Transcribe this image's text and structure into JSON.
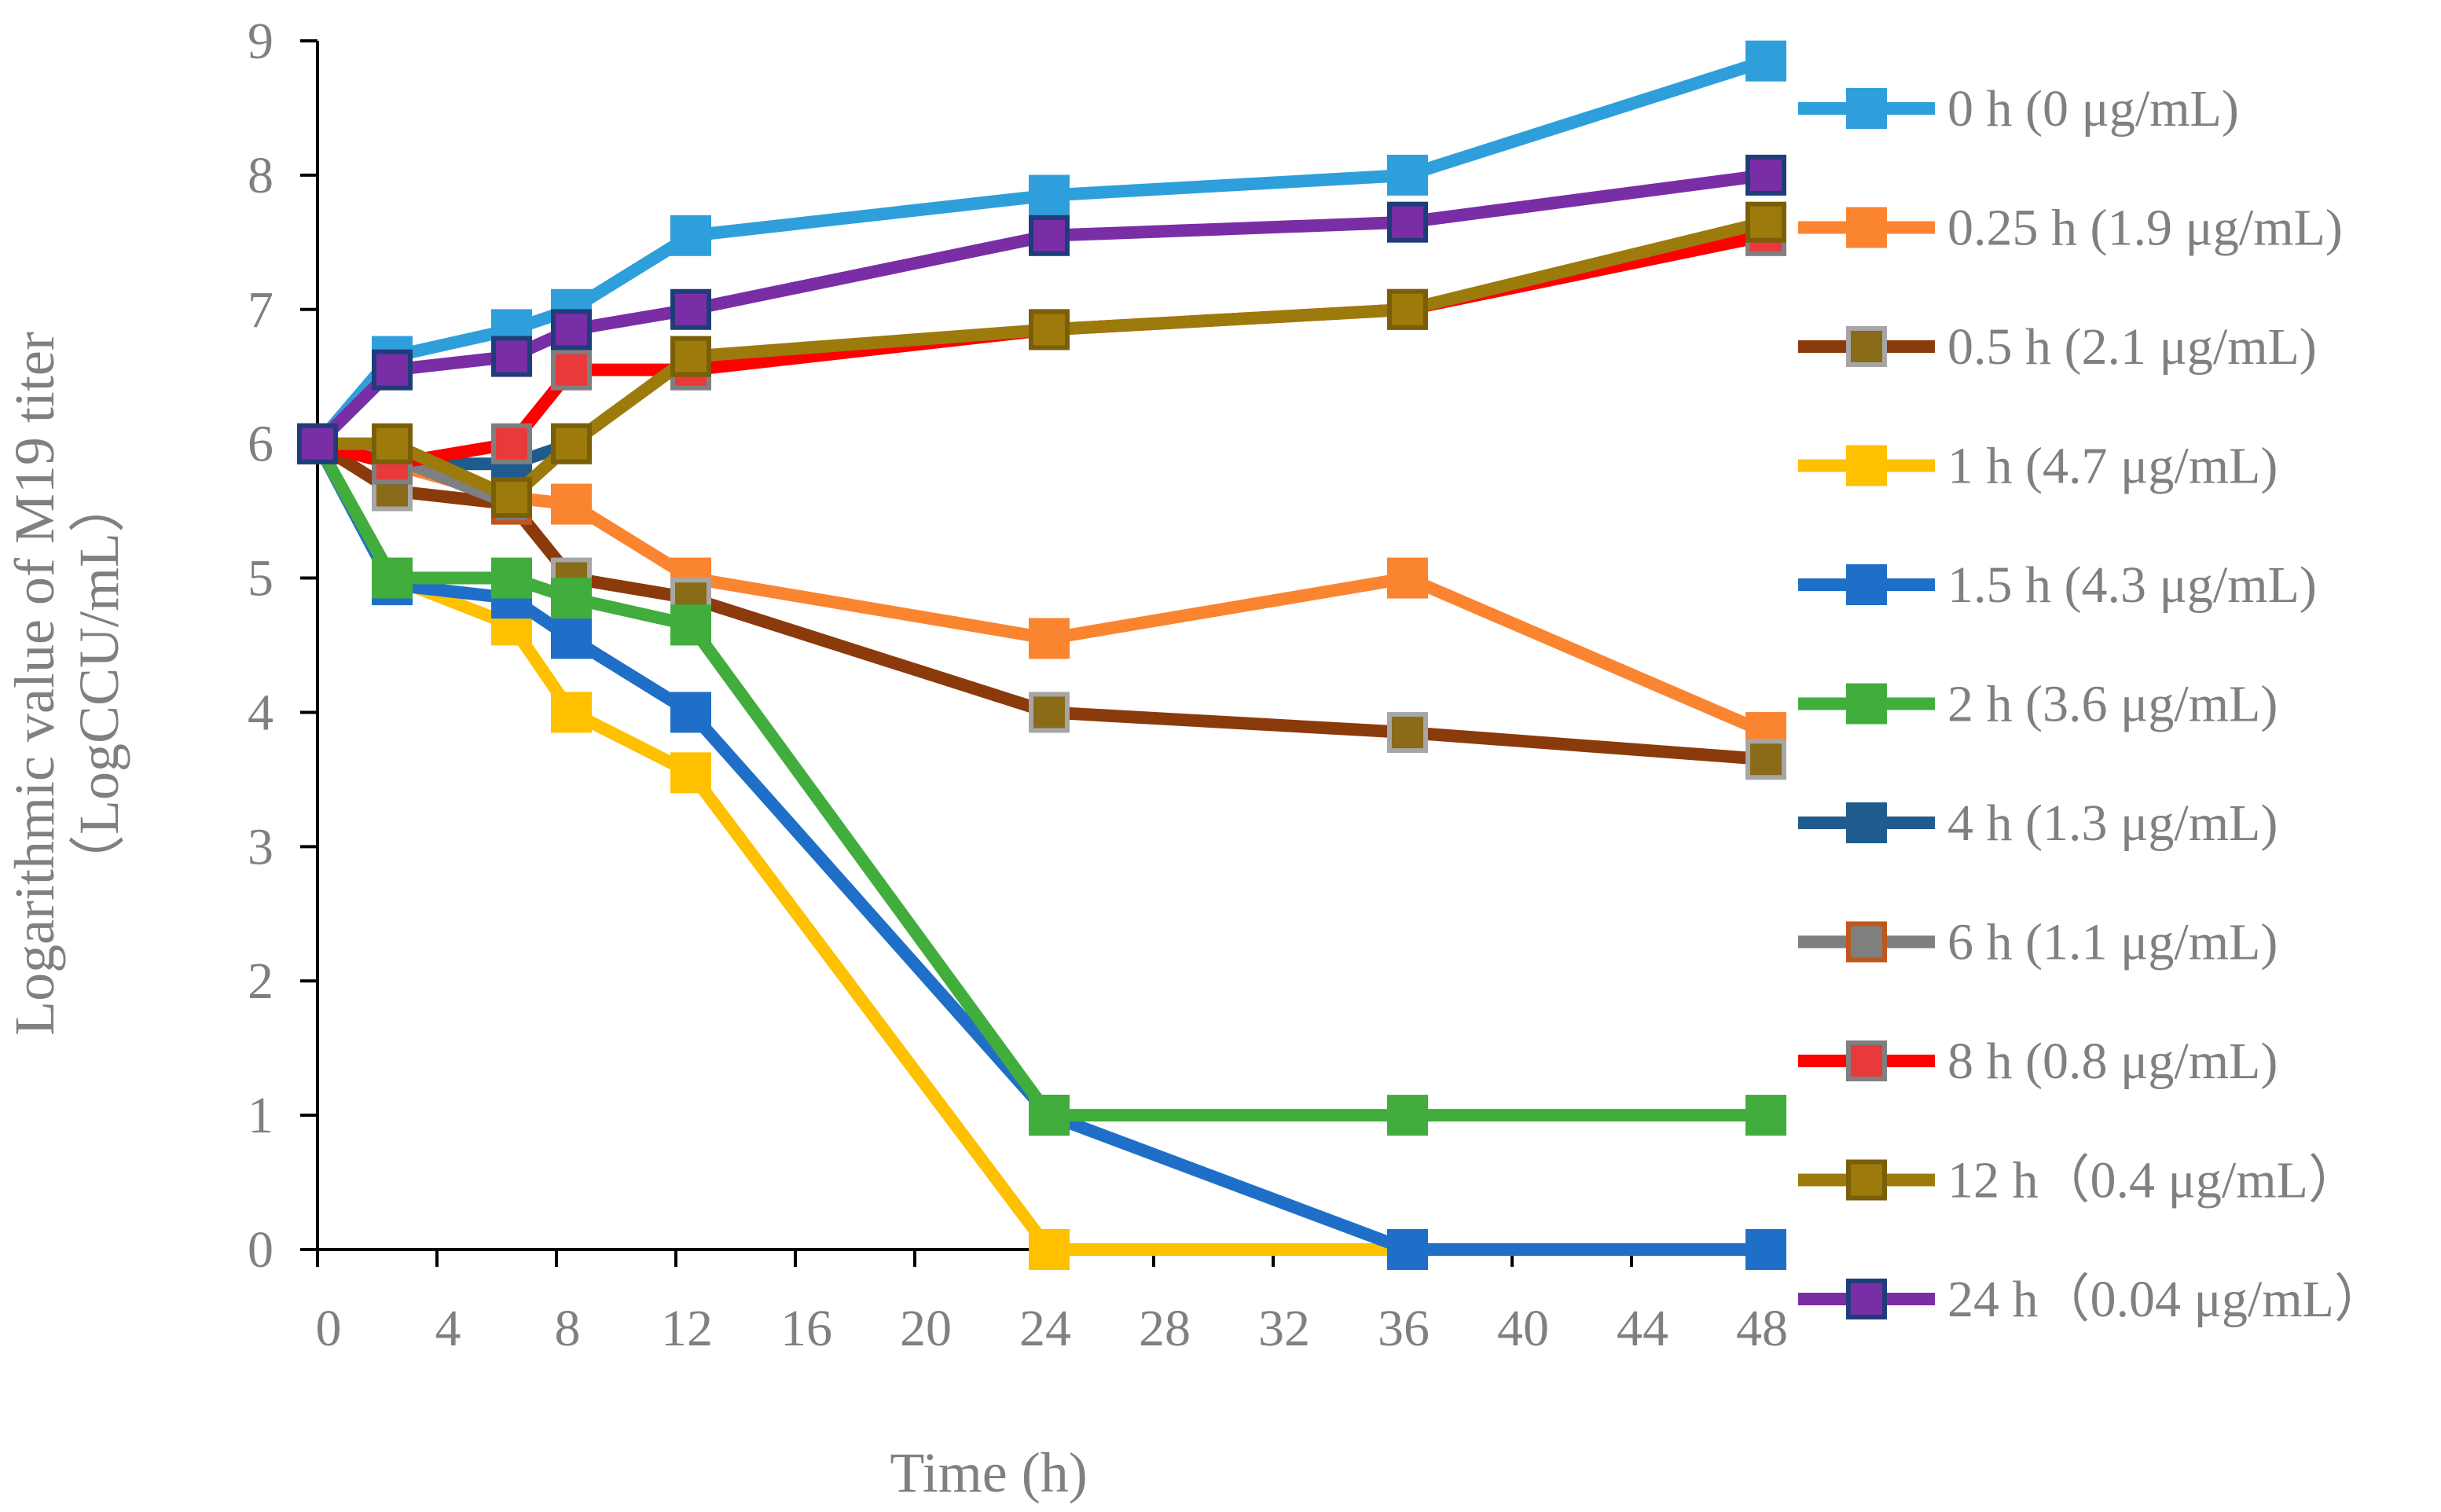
{
  "chart_data": {
    "type": "line",
    "title": "",
    "xlabel": "Time (h)",
    "ylabel_line1": "Logarithmic value of M19 titer",
    "ylabel_line2": "（LogCCU/mL）",
    "xlim": [
      0,
      48
    ],
    "ylim": [
      0,
      9
    ],
    "xticks": [
      0,
      4,
      8,
      12,
      16,
      20,
      24,
      28,
      32,
      36,
      40,
      44,
      48
    ],
    "yticks": [
      0,
      1,
      2,
      3,
      4,
      5,
      6,
      7,
      8,
      9
    ],
    "grid": false,
    "legend_position": "right",
    "series": [
      {
        "name": "0 h (0 μg/mL)",
        "color": "#2E9FDB",
        "marker_fill": "#2E9FDB",
        "marker_stroke": "#2E9FDB",
        "x": [
          0,
          2.5,
          6.5,
          8.5,
          12.5,
          24.5,
          36.5,
          48.5
        ],
        "y": [
          6,
          6.65,
          6.85,
          7,
          7.55,
          7.85,
          8,
          8.85
        ]
      },
      {
        "name": "0.25 h (1.9 μg/mL)",
        "color": "#FB8430",
        "marker_fill": "#FB8430",
        "marker_stroke": "#FB8430",
        "x": [
          0,
          2.5,
          6.5,
          8.5,
          12.5,
          24.5,
          36.5,
          48.5
        ],
        "y": [
          6,
          5.85,
          5.6,
          5.55,
          5.0,
          4.55,
          5.0,
          3.85
        ]
      },
      {
        "name": "0.5 h (2.1 μg/mL)",
        "color": "#8B3A0B",
        "marker_fill": "#8A6B17",
        "marker_stroke": "#A6A6A6",
        "x": [
          0,
          2.5,
          6.5,
          8.5,
          12.5,
          24.5,
          36.5,
          48.5
        ],
        "y": [
          6,
          5.65,
          5.55,
          5.0,
          4.85,
          4.0,
          3.85,
          3.65
        ]
      },
      {
        "name": "1 h (4.7 μg/mL)",
        "color": "#FFC000",
        "marker_fill": "#FFC000",
        "marker_stroke": "#FFC000",
        "x": [
          0,
          2.5,
          6.5,
          8.5,
          12.5,
          24.5,
          36.5
        ],
        "y": [
          6,
          5.0,
          4.65,
          4.0,
          3.55,
          0,
          0
        ]
      },
      {
        "name": "1.5 h (4.3 μg/mL)",
        "color": "#1F6FC8",
        "marker_fill": "#1F6FC8",
        "marker_stroke": "#1F6FC8",
        "x": [
          0,
          2.5,
          6.5,
          8.5,
          12.5,
          24.5,
          36.5,
          48.5
        ],
        "y": [
          6,
          4.95,
          4.85,
          4.55,
          4.0,
          1.0,
          0,
          0
        ]
      },
      {
        "name": "2 h (3.6 μg/mL)",
        "color": "#41AD3C",
        "marker_fill": "#41AD3C",
        "marker_stroke": "#41AD3C",
        "x": [
          0,
          2.5,
          6.5,
          8.5,
          12.5,
          24.5,
          36.5,
          48.5
        ],
        "y": [
          6,
          5.0,
          5.0,
          4.85,
          4.65,
          1.0,
          1.0,
          1.0
        ]
      },
      {
        "name": "4 h (1.3 μg/mL)",
        "color": "#1F5B8C",
        "marker_fill": "#1F5B8C",
        "marker_stroke": "#1F5B8C",
        "x": [
          0,
          2.5,
          6.5,
          8.5
        ],
        "y": [
          6,
          5.85,
          5.85,
          6.0
        ]
      },
      {
        "name": "6 h (1.1 μg/mL)",
        "color": "#7F7F7F",
        "marker_fill": "#7F7F7F",
        "marker_stroke": "#C0561B",
        "x": [
          0,
          2.5,
          6.5
        ],
        "y": [
          6,
          5.9,
          5.55
        ]
      },
      {
        "name": "8 h (0.8 μg/mL)",
        "color": "#FF0000",
        "marker_fill": "#E83A3A",
        "marker_stroke": "#7F7F7F",
        "x": [
          0,
          2.5,
          6.5,
          8.5,
          12.5,
          24.5,
          36.5,
          48.5
        ],
        "y": [
          6,
          5.85,
          6.0,
          6.55,
          6.55,
          6.85,
          7.0,
          7.55
        ]
      },
      {
        "name": "12 h（0.4 μg/mL）",
        "color": "#9C7A0C",
        "marker_fill": "#9C7A0C",
        "marker_stroke": "#7A5E08",
        "x": [
          0,
          2.5,
          6.5,
          8.5,
          12.5,
          24.5,
          36.5,
          48.5
        ],
        "y": [
          6,
          6.0,
          5.6,
          6.0,
          6.65,
          6.85,
          7.0,
          7.65
        ]
      },
      {
        "name": "24 h（0.04 μg/mL）",
        "color": "#7A2EA6",
        "marker_fill": "#7A2EA6",
        "marker_stroke": "#1F3D7A",
        "x": [
          0,
          2.5,
          6.5,
          8.5,
          12.5,
          24.5,
          36.5,
          48.5
        ],
        "y": [
          6,
          6.55,
          6.65,
          6.85,
          7.0,
          7.55,
          7.65,
          8.0
        ]
      }
    ]
  }
}
